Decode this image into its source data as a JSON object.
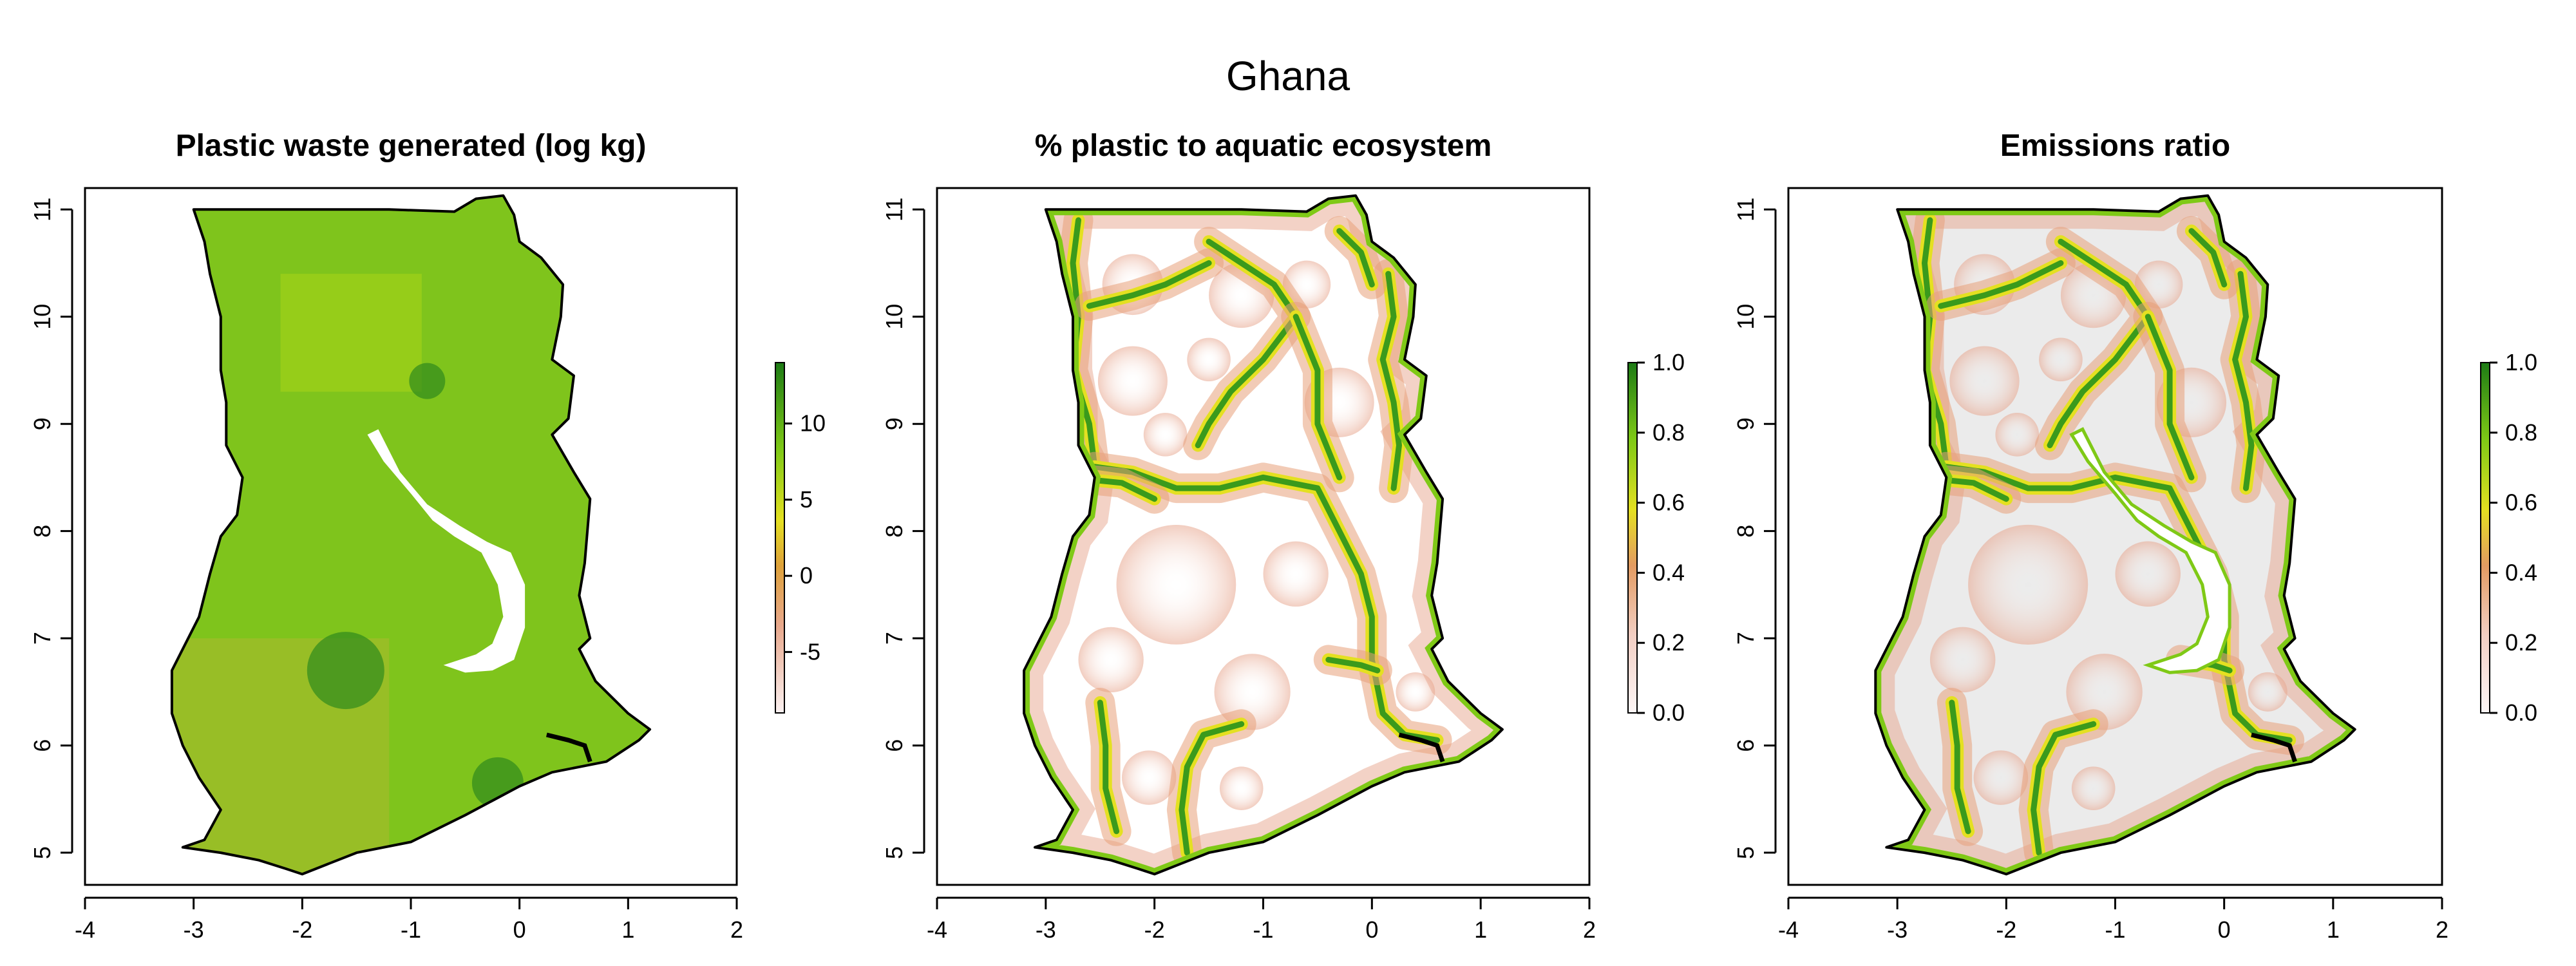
{
  "figure": {
    "title": "Ghana"
  },
  "colors": {
    "frame": "#000000",
    "water": "#ffffff",
    "high": "#1a7a1a",
    "mid": "#8fd21e",
    "yellow": "#e7e31d",
    "orange": "#e1a86e",
    "low": "#f7ecec",
    "grey_land": "#ebebeb"
  },
  "chart_data": [
    {
      "type": "heatmap",
      "title": "Plastic waste generated (log kg)",
      "xlabel": "",
      "ylabel": "",
      "xlim": [
        -4,
        2
      ],
      "ylim": [
        4.7,
        11.2
      ],
      "x_ticks": [
        -4,
        -3,
        -2,
        -1,
        0,
        1,
        2
      ],
      "y_ticks": [
        5,
        6,
        7,
        8,
        9,
        10,
        11
      ],
      "legend": {
        "position": "right",
        "range": [
          -9,
          14
        ],
        "ticks": [
          10,
          5,
          0,
          -5
        ]
      },
      "grid": false
    },
    {
      "type": "heatmap",
      "title": "% plastic to aquatic ecosystem",
      "xlabel": "",
      "ylabel": "",
      "xlim": [
        -4,
        2
      ],
      "ylim": [
        4.7,
        11.2
      ],
      "x_ticks": [
        -4,
        -3,
        -2,
        -1,
        0,
        1,
        2
      ],
      "y_ticks": [
        5,
        6,
        7,
        8,
        9,
        10,
        11
      ],
      "legend": {
        "position": "right",
        "range": [
          0,
          1
        ],
        "ticks": [
          "1.0",
          "0.8",
          "0.6",
          "0.4",
          "0.2",
          "0.0"
        ]
      },
      "grid": false
    },
    {
      "type": "heatmap",
      "title": "Emissions ratio",
      "xlabel": "",
      "ylabel": "",
      "xlim": [
        -4,
        2
      ],
      "ylim": [
        4.7,
        11.2
      ],
      "x_ticks": [
        -4,
        -3,
        -2,
        -1,
        0,
        1,
        2
      ],
      "y_ticks": [
        5,
        6,
        7,
        8,
        9,
        10,
        11
      ],
      "legend": {
        "position": "right",
        "range": [
          0,
          1
        ],
        "ticks": [
          "1.0",
          "0.8",
          "0.6",
          "0.4",
          "0.2",
          "0.0"
        ]
      },
      "grid": false
    }
  ]
}
